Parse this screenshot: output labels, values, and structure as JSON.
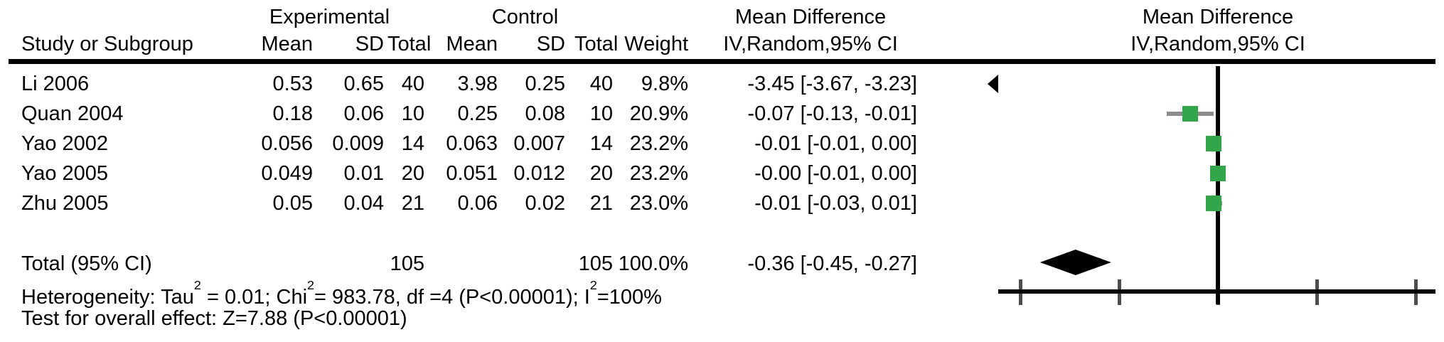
{
  "figure": {
    "headers": {
      "group_experimental": "Experimental",
      "group_control": "Control",
      "col_study": "Study or Subgroup",
      "col_mean": "Mean",
      "col_sd": "SD",
      "col_total": "Total",
      "col_weight": "Weight",
      "md_title": "Mean Difference",
      "md_subtitle": "IV,Random,95% CI"
    },
    "rows": [
      {
        "study": "Li 2006",
        "mean_e": "0.53",
        "sd_e": "0.65",
        "total_e": "40",
        "mean_c": "3.98",
        "sd_c": "0.25",
        "total_c": "40",
        "weight": "9.8%",
        "md_ci": "-3.45 [-3.67, -3.23]"
      },
      {
        "study": "Quan 2004",
        "mean_e": "0.18",
        "sd_e": "0.06",
        "total_e": "10",
        "mean_c": "0.25",
        "sd_c": "0.08",
        "total_c": "10",
        "weight": "20.9%",
        "md_ci": "-0.07 [-0.13, -0.01]"
      },
      {
        "study": "Yao 2002",
        "mean_e": "0.056",
        "sd_e": "0.009",
        "total_e": "14",
        "mean_c": "0.063",
        "sd_c": "0.007",
        "total_c": "14",
        "weight": "23.2%",
        "md_ci": "-0.01 [-0.01, 0.00]"
      },
      {
        "study": "Yao 2005",
        "mean_e": "0.049",
        "sd_e": "0.01",
        "total_e": "20",
        "mean_c": "0.051",
        "sd_c": "0.012",
        "total_c": "20",
        "weight": "23.2%",
        "md_ci": "-0.00 [-0.01, 0.00]"
      },
      {
        "study": "Zhu 2005",
        "mean_e": "0.05",
        "sd_e": "0.04",
        "total_e": "21",
        "mean_c": "0.06",
        "sd_c": "0.02",
        "total_c": "21",
        "weight": "23.0%",
        "md_ci": "-0.01 [-0.03, 0.01]"
      }
    ],
    "total": {
      "label": "Total (95% CI)",
      "total_e": "105",
      "total_c": "105",
      "weight": "100.0%",
      "md_ci": "-0.36 [-0.45, -0.27]"
    },
    "heterogeneity": [
      "Heterogeneity: Tau",
      "2",
      " = 0.01; Chi",
      "2",
      "= 983.78, df =4 (P<0.00001); I",
      "2",
      "=100%"
    ],
    "overall_test": "Test for overall effect: Z=7.88 (P<0.00001)"
  },
  "chart_data": {
    "type": "forest",
    "effect_measure": "Mean Difference",
    "model": "IV,Random,95% CI",
    "xlim": [
      -0.55,
      0.55
    ],
    "x_ticks": [
      -0.5,
      -0.25,
      0,
      0.25,
      0.5
    ],
    "zero_line": 0,
    "tick_labels_visible": false,
    "studies": [
      {
        "name": "Li 2006",
        "md": -3.45,
        "ci": [
          -3.67,
          -3.23
        ],
        "weight_pct": 9.8,
        "offscale": "left"
      },
      {
        "name": "Quan 2004",
        "md": -0.07,
        "ci": [
          -0.13,
          -0.01
        ],
        "weight_pct": 20.9
      },
      {
        "name": "Yao 2002",
        "md": -0.01,
        "ci": [
          -0.01,
          0.0
        ],
        "weight_pct": 23.2
      },
      {
        "name": "Yao 2005",
        "md": -0.0,
        "ci": [
          -0.01,
          0.0
        ],
        "weight_pct": 23.2
      },
      {
        "name": "Zhu 2005",
        "md": -0.01,
        "ci": [
          -0.03,
          0.01
        ],
        "weight_pct": 23.0
      }
    ],
    "total": {
      "md": -0.36,
      "ci": [
        -0.45,
        -0.27
      ]
    },
    "colors": {
      "marker": "#33a64c",
      "ci_line": "#8c8c8c",
      "axis": "#000000",
      "tick": "#4d4d4d",
      "diamond": "#000000",
      "text": "#000000"
    }
  }
}
